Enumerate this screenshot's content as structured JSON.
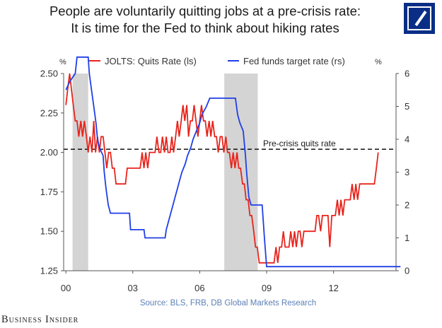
{
  "header": {
    "title_line1": "People are voluntarily quitting jobs at a pre-crisis rate:",
    "title_line2": "It is time for the Fed to think about hiking rates"
  },
  "logo": {
    "icon": "deutsche-bank-logo",
    "color": "#0a2e86"
  },
  "footer": {
    "source": "Source: BLS, FRB, DB Global Markets Research",
    "brand": "Business Insider"
  },
  "chart_data": {
    "type": "line",
    "left_unit": "%",
    "right_unit": "%",
    "x_ticks": [
      "00",
      "03",
      "06",
      "09",
      "12"
    ],
    "x_tick_values": [
      2000,
      2003,
      2006,
      2009,
      2012
    ],
    "xlim": [
      1999.9,
      2014.8
    ],
    "ylim_left": [
      1.25,
      2.5
    ],
    "ylim_right": [
      0,
      6
    ],
    "y_ticks_left": [
      "2.50",
      "2.25",
      "2.00",
      "1.75",
      "1.50",
      "1.25"
    ],
    "y_tick_values_left": [
      2.5,
      2.25,
      2.0,
      1.75,
      1.5,
      1.25
    ],
    "y_ticks_right": [
      "6",
      "5",
      "4",
      "3",
      "2",
      "1",
      "0"
    ],
    "y_tick_values_right": [
      6,
      5,
      4,
      3,
      2,
      1,
      0
    ],
    "recessions": [
      [
        2000.3,
        2001.0
      ],
      [
        2007.1,
        2008.6
      ]
    ],
    "reference_line": {
      "label": "Pre-crisis quits rate",
      "value": 2.02,
      "axis": "left"
    },
    "legend_position": "top",
    "series": [
      {
        "name": "JOLTS: Quits Rate (ls)",
        "axis": "left",
        "color": "#e8241c",
        "points": [
          [
            2000.0,
            2.3
          ],
          [
            2000.08,
            2.4
          ],
          [
            2000.17,
            2.5
          ],
          [
            2000.25,
            2.4
          ],
          [
            2000.33,
            2.3
          ],
          [
            2000.42,
            2.2
          ],
          [
            2000.5,
            2.2
          ],
          [
            2000.58,
            2.1
          ],
          [
            2000.67,
            2.2
          ],
          [
            2000.75,
            2.1
          ],
          [
            2000.83,
            2.2
          ],
          [
            2000.92,
            2.1
          ],
          [
            2001.0,
            2.0
          ],
          [
            2001.08,
            2.1
          ],
          [
            2001.17,
            2.0
          ],
          [
            2001.25,
            2.2
          ],
          [
            2001.33,
            2.0
          ],
          [
            2001.42,
            2.1
          ],
          [
            2001.5,
            2.0
          ],
          [
            2001.58,
            2.1
          ],
          [
            2001.67,
            2.1
          ],
          [
            2001.75,
            2.0
          ],
          [
            2001.83,
            1.9
          ],
          [
            2001.92,
            2.0
          ],
          [
            2002.0,
            2.0
          ],
          [
            2002.08,
            1.9
          ],
          [
            2002.17,
            1.9
          ],
          [
            2002.25,
            1.8
          ],
          [
            2002.33,
            1.8
          ],
          [
            2002.42,
            1.8
          ],
          [
            2002.5,
            1.8
          ],
          [
            2002.58,
            1.8
          ],
          [
            2002.67,
            1.8
          ],
          [
            2002.75,
            1.9
          ],
          [
            2002.83,
            1.9
          ],
          [
            2002.92,
            1.9
          ],
          [
            2003.0,
            1.9
          ],
          [
            2003.08,
            1.9
          ],
          [
            2003.17,
            1.9
          ],
          [
            2003.25,
            1.9
          ],
          [
            2003.33,
            1.9
          ],
          [
            2003.42,
            2.0
          ],
          [
            2003.5,
            1.9
          ],
          [
            2003.58,
            2.0
          ],
          [
            2003.67,
            1.9
          ],
          [
            2003.75,
            2.0
          ],
          [
            2003.83,
            2.0
          ],
          [
            2003.92,
            2.0
          ],
          [
            2004.0,
            2.0
          ],
          [
            2004.08,
            2.1
          ],
          [
            2004.17,
            2.0
          ],
          [
            2004.25,
            2.0
          ],
          [
            2004.33,
            2.1
          ],
          [
            2004.42,
            2.0
          ],
          [
            2004.5,
            2.1
          ],
          [
            2004.58,
            2.0
          ],
          [
            2004.67,
            2.0
          ],
          [
            2004.75,
            2.1
          ],
          [
            2004.83,
            2.0
          ],
          [
            2004.92,
            2.1
          ],
          [
            2005.0,
            2.2
          ],
          [
            2005.08,
            2.1
          ],
          [
            2005.17,
            2.2
          ],
          [
            2005.25,
            2.3
          ],
          [
            2005.33,
            2.2
          ],
          [
            2005.42,
            2.3
          ],
          [
            2005.5,
            2.1
          ],
          [
            2005.58,
            2.2
          ],
          [
            2005.67,
            2.2
          ],
          [
            2005.75,
            2.3
          ],
          [
            2005.83,
            2.2
          ],
          [
            2005.92,
            2.1
          ],
          [
            2006.0,
            2.2
          ],
          [
            2006.08,
            2.3
          ],
          [
            2006.17,
            2.2
          ],
          [
            2006.25,
            2.2
          ],
          [
            2006.33,
            2.1
          ],
          [
            2006.42,
            2.2
          ],
          [
            2006.5,
            2.1
          ],
          [
            2006.58,
            2.2
          ],
          [
            2006.67,
            2.1
          ],
          [
            2006.75,
            2.1
          ],
          [
            2006.83,
            2.0
          ],
          [
            2006.92,
            2.1
          ],
          [
            2007.0,
            2.1
          ],
          [
            2007.08,
            2.0
          ],
          [
            2007.17,
            2.1
          ],
          [
            2007.25,
            2.0
          ],
          [
            2007.33,
            2.0
          ],
          [
            2007.42,
            1.9
          ],
          [
            2007.5,
            2.0
          ],
          [
            2007.58,
            1.9
          ],
          [
            2007.67,
            2.0
          ],
          [
            2007.75,
            1.9
          ],
          [
            2007.83,
            1.9
          ],
          [
            2007.92,
            1.8
          ],
          [
            2008.0,
            1.8
          ],
          [
            2008.08,
            1.7
          ],
          [
            2008.17,
            1.7
          ],
          [
            2008.25,
            1.6
          ],
          [
            2008.33,
            1.6
          ],
          [
            2008.42,
            1.5
          ],
          [
            2008.5,
            1.4
          ],
          [
            2008.58,
            1.4
          ],
          [
            2008.67,
            1.3
          ],
          [
            2008.75,
            1.3
          ],
          [
            2008.83,
            1.3
          ],
          [
            2008.92,
            1.3
          ],
          [
            2009.0,
            1.3
          ],
          [
            2009.08,
            1.3
          ],
          [
            2009.17,
            1.3
          ],
          [
            2009.25,
            1.3
          ],
          [
            2009.33,
            1.3
          ],
          [
            2009.42,
            1.4
          ],
          [
            2009.5,
            1.3
          ],
          [
            2009.58,
            1.4
          ],
          [
            2009.67,
            1.4
          ],
          [
            2009.75,
            1.5
          ],
          [
            2009.83,
            1.4
          ],
          [
            2009.92,
            1.4
          ],
          [
            2010.0,
            1.4
          ],
          [
            2010.08,
            1.5
          ],
          [
            2010.17,
            1.4
          ],
          [
            2010.25,
            1.5
          ],
          [
            2010.33,
            1.4
          ],
          [
            2010.42,
            1.5
          ],
          [
            2010.5,
            1.5
          ],
          [
            2010.58,
            1.4
          ],
          [
            2010.67,
            1.5
          ],
          [
            2010.75,
            1.5
          ],
          [
            2010.83,
            1.5
          ],
          [
            2010.92,
            1.5
          ],
          [
            2011.0,
            1.5
          ],
          [
            2011.08,
            1.5
          ],
          [
            2011.17,
            1.5
          ],
          [
            2011.25,
            1.6
          ],
          [
            2011.33,
            1.6
          ],
          [
            2011.42,
            1.5
          ],
          [
            2011.5,
            1.6
          ],
          [
            2011.58,
            1.6
          ],
          [
            2011.67,
            1.6
          ],
          [
            2011.75,
            1.6
          ],
          [
            2011.83,
            1.4
          ],
          [
            2011.92,
            1.6
          ],
          [
            2012.0,
            1.6
          ],
          [
            2012.08,
            1.6
          ],
          [
            2012.17,
            1.7
          ],
          [
            2012.25,
            1.6
          ],
          [
            2012.33,
            1.7
          ],
          [
            2012.42,
            1.6
          ],
          [
            2012.5,
            1.7
          ],
          [
            2012.58,
            1.7
          ],
          [
            2012.67,
            1.7
          ],
          [
            2012.75,
            1.7
          ],
          [
            2012.83,
            1.8
          ],
          [
            2012.92,
            1.7
          ],
          [
            2013.0,
            1.8
          ],
          [
            2013.08,
            1.7
          ],
          [
            2013.17,
            1.8
          ],
          [
            2013.25,
            1.8
          ],
          [
            2013.33,
            1.8
          ],
          [
            2013.42,
            1.8
          ],
          [
            2013.5,
            1.8
          ],
          [
            2013.58,
            1.8
          ],
          [
            2013.67,
            1.8
          ],
          [
            2013.75,
            1.8
          ],
          [
            2013.83,
            1.8
          ],
          [
            2013.92,
            1.9
          ],
          [
            2014.0,
            2.0
          ]
        ]
      },
      {
        "name": "Fed funds target rate (rs)",
        "axis": "right",
        "color": "#1f3fe6",
        "points": [
          [
            2000.0,
            5.5
          ],
          [
            2000.17,
            5.75
          ],
          [
            2000.42,
            6.0
          ],
          [
            2000.5,
            6.5
          ],
          [
            2001.0,
            6.5
          ],
          [
            2001.05,
            6.0
          ],
          [
            2001.15,
            5.5
          ],
          [
            2001.25,
            5.0
          ],
          [
            2001.35,
            4.5
          ],
          [
            2001.42,
            4.0
          ],
          [
            2001.5,
            3.75
          ],
          [
            2001.67,
            3.5
          ],
          [
            2001.72,
            3.0
          ],
          [
            2001.8,
            2.5
          ],
          [
            2001.9,
            2.0
          ],
          [
            2002.0,
            1.75
          ],
          [
            2002.85,
            1.75
          ],
          [
            2002.9,
            1.25
          ],
          [
            2003.5,
            1.25
          ],
          [
            2003.55,
            1.0
          ],
          [
            2004.45,
            1.0
          ],
          [
            2004.5,
            1.25
          ],
          [
            2004.6,
            1.5
          ],
          [
            2004.7,
            1.75
          ],
          [
            2004.8,
            2.0
          ],
          [
            2004.9,
            2.25
          ],
          [
            2005.0,
            2.5
          ],
          [
            2005.1,
            2.75
          ],
          [
            2005.2,
            3.0
          ],
          [
            2005.35,
            3.25
          ],
          [
            2005.45,
            3.5
          ],
          [
            2005.6,
            3.75
          ],
          [
            2005.7,
            4.0
          ],
          [
            2005.85,
            4.25
          ],
          [
            2006.0,
            4.5
          ],
          [
            2006.1,
            4.75
          ],
          [
            2006.3,
            5.0
          ],
          [
            2006.45,
            5.25
          ],
          [
            2007.6,
            5.25
          ],
          [
            2007.7,
            4.75
          ],
          [
            2007.8,
            4.5
          ],
          [
            2007.95,
            4.25
          ],
          [
            2008.05,
            3.5
          ],
          [
            2008.1,
            3.0
          ],
          [
            2008.2,
            2.25
          ],
          [
            2008.3,
            2.0
          ],
          [
            2008.8,
            2.0
          ],
          [
            2008.85,
            1.5
          ],
          [
            2008.9,
            1.0
          ],
          [
            2009.0,
            0.125
          ],
          [
            2015.0,
            0.125
          ]
        ]
      }
    ]
  }
}
